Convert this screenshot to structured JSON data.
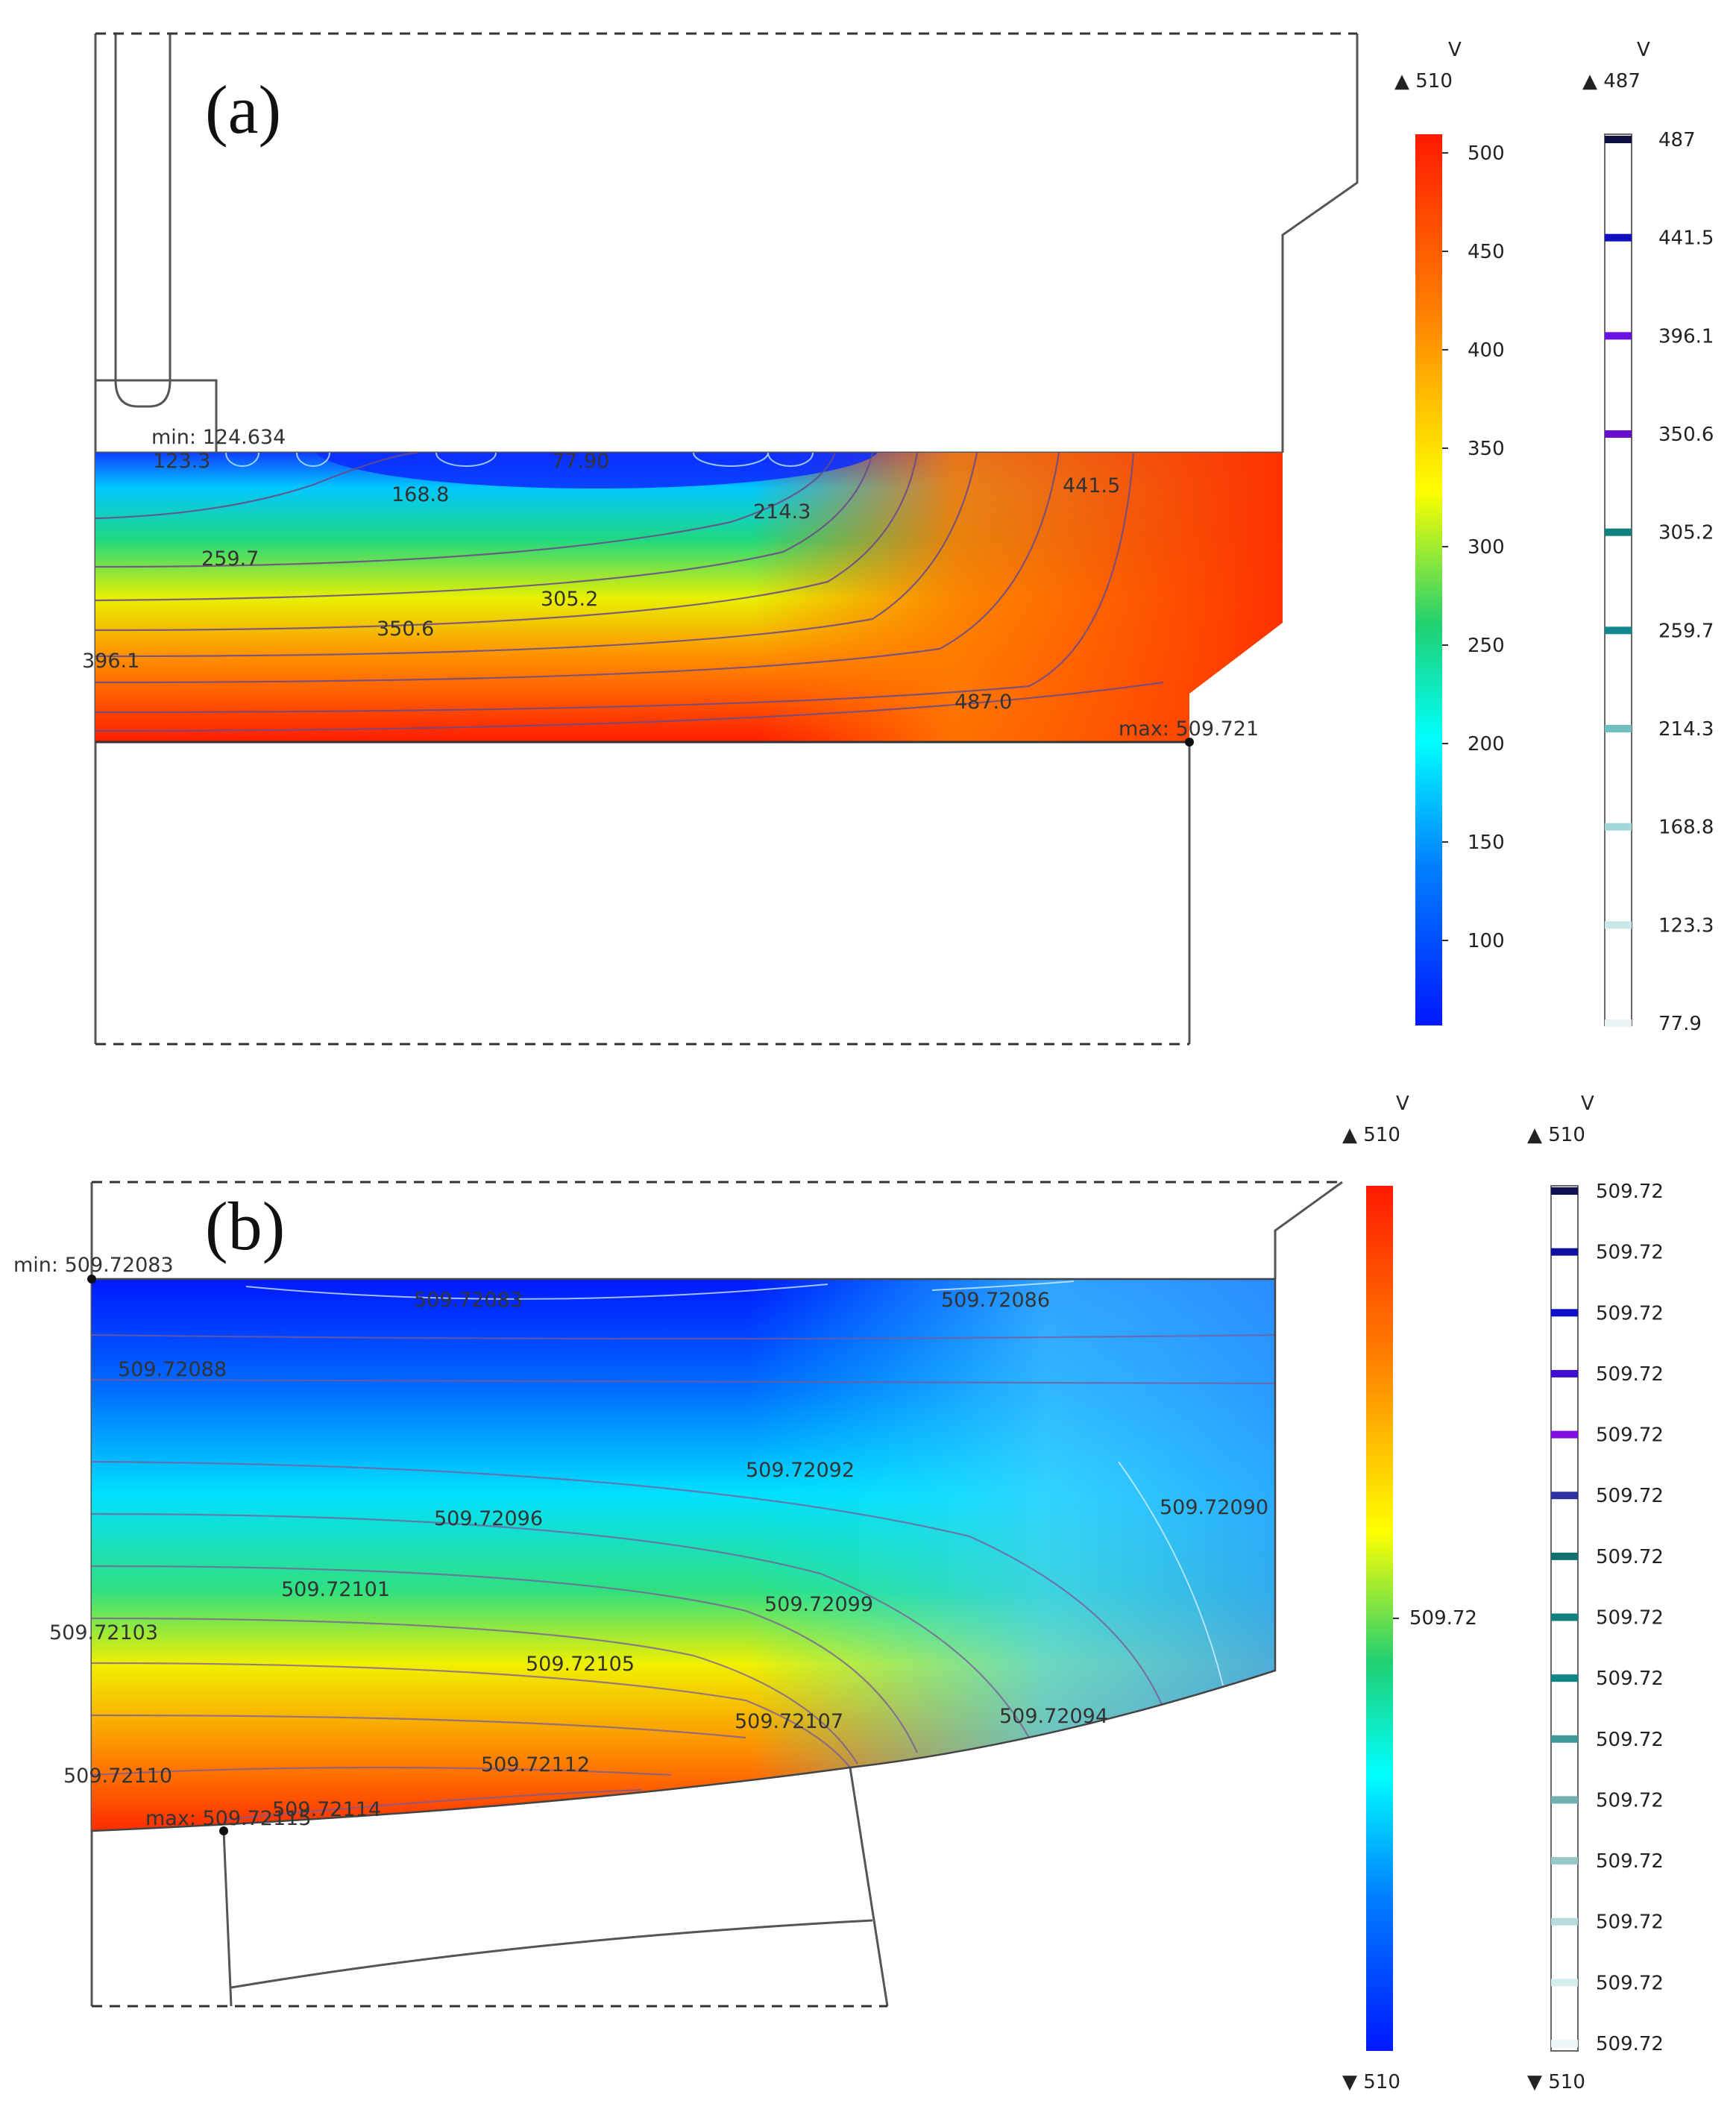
{
  "panel_a": {
    "label": "(a)",
    "min_label": "min: 124.634",
    "max_label": "max: 509.721",
    "contour_labels": [
      "123.3",
      "77.90",
      "168.8",
      "214.3",
      "441.5",
      "259.7",
      "305.2",
      "350.6",
      "396.1",
      "487.0"
    ],
    "surface_legend": {
      "unit": "V",
      "max_marker": "▲ 510",
      "ticks": [
        "500",
        "450",
        "400",
        "350",
        "300",
        "250",
        "200",
        "150",
        "100"
      ],
      "colors": [
        "#ff1a00",
        "#ff8000",
        "#ffff00",
        "#20d070",
        "#00ffff",
        "#0080ff",
        "#0018ff"
      ]
    },
    "contour_legend": {
      "unit": "V",
      "max_marker": "▲ 487",
      "levels": [
        "487",
        "441.5",
        "396.1",
        "350.6",
        "305.2",
        "259.7",
        "214.3",
        "168.8",
        "123.3",
        "77.9"
      ],
      "level_colors": [
        "#101040",
        "#1010c0",
        "#6a10e0",
        "#6a10d0",
        "#108080",
        "#108890",
        "#70c0c0",
        "#a0d8d8",
        "#c8e8e8",
        "#e8f4f4"
      ]
    }
  },
  "panel_b": {
    "label": "(b)",
    "min_label": "min: 509.72083",
    "max_label": "max: 509.72115",
    "contour_labels": [
      "509.72083",
      "509.72086",
      "509.72088",
      "509.72092",
      "509.72096",
      "509.72090",
      "509.72101",
      "509.72099",
      "509.72103",
      "509.72105",
      "509.72107",
      "509.72094",
      "509.72110",
      "509.72112",
      "509.72114"
    ],
    "surface_legend": {
      "unit": "V",
      "max_marker": "▲ 510",
      "min_marker": "▼ 510",
      "ticks": [
        "509.72"
      ]
    },
    "contour_legend": {
      "unit": "V",
      "max_marker": "▲ 510",
      "min_marker": "▼ 510",
      "levels": [
        "509.72",
        "509.72",
        "509.72",
        "509.72",
        "509.72",
        "509.72",
        "509.72",
        "509.72",
        "509.72",
        "509.72",
        "509.72",
        "509.72",
        "509.72",
        "509.72",
        "509.72"
      ],
      "level_colors": [
        "#101050",
        "#1010a0",
        "#1010c8",
        "#4010d0",
        "#8010e0",
        "#3030a0",
        "#107070",
        "#108080",
        "#108888",
        "#409898",
        "#70b0b0",
        "#98c8c8",
        "#b8dcdc",
        "#d4ecec",
        "#eef8f8"
      ]
    }
  }
}
